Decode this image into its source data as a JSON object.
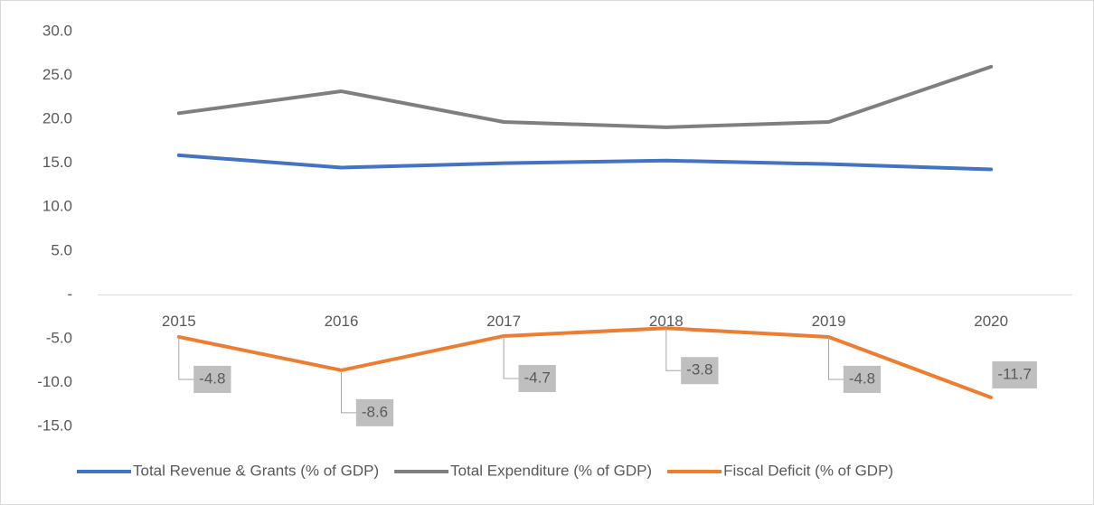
{
  "chart_data": {
    "type": "line",
    "categories": [
      "2015",
      "2016",
      "2017",
      "2018",
      "2019",
      "2020"
    ],
    "series": [
      {
        "name": "Total Revenue & Grants (% of GDP)",
        "color": "#4472c4",
        "values": [
          15.9,
          14.5,
          15.0,
          15.3,
          14.9,
          14.3
        ]
      },
      {
        "name": "Total Expenditure (% of GDP)",
        "color": "#7f7f7f",
        "values": [
          20.7,
          23.2,
          19.7,
          19.1,
          19.7,
          26.0
        ]
      },
      {
        "name": "Fiscal Deficit (% of GDP)",
        "color": "#ed7d31",
        "values": [
          -4.8,
          -8.6,
          -4.7,
          -3.8,
          -4.8,
          -11.7
        ],
        "data_labels": true
      }
    ],
    "ylim": [
      -15,
      30
    ],
    "yticks": [
      {
        "value": -15,
        "label": "-15.0"
      },
      {
        "value": -10,
        "label": "-10.0"
      },
      {
        "value": -5,
        "label": "-5.0"
      },
      {
        "value": 0,
        "label": "-"
      },
      {
        "value": 5,
        "label": "5.0"
      },
      {
        "value": 10,
        "label": "10.0"
      },
      {
        "value": 15,
        "label": "15.0"
      },
      {
        "value": 20,
        "label": "20.0"
      },
      {
        "value": 25,
        "label": "25.0"
      },
      {
        "value": 30,
        "label": "30.0"
      }
    ],
    "grid": false,
    "legend": "bottom"
  }
}
